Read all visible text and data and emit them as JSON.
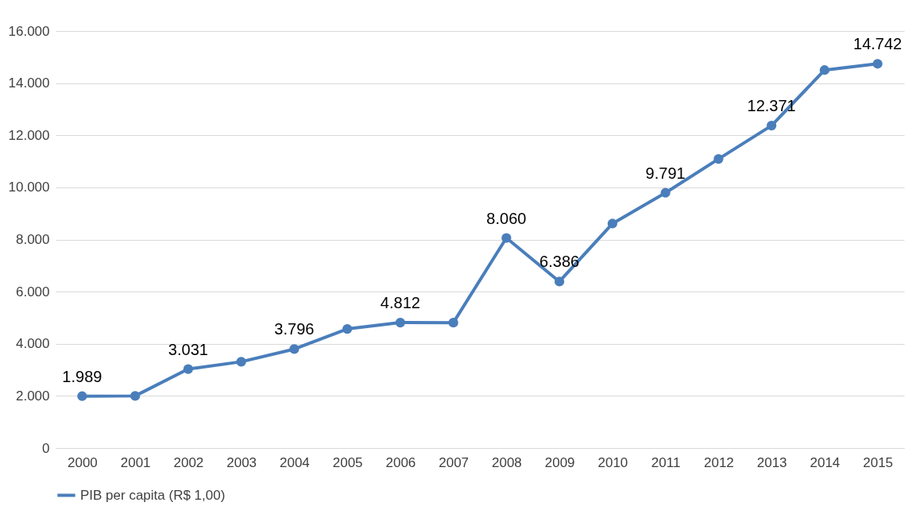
{
  "chart_data": {
    "type": "line",
    "categories": [
      "2000",
      "2001",
      "2002",
      "2003",
      "2004",
      "2005",
      "2006",
      "2007",
      "2008",
      "2009",
      "2010",
      "2011",
      "2012",
      "2013",
      "2014",
      "2015"
    ],
    "series": [
      {
        "name": "PIB per capita (R$ 1,00)",
        "color": "#4a7ebb",
        "values": [
          1989,
          2000,
          3031,
          3310,
          3796,
          4570,
          4812,
          4810,
          8060,
          6386,
          8610,
          9791,
          11090,
          12371,
          14500,
          14742
        ],
        "value_labels": [
          "1.989",
          null,
          "3.031",
          null,
          "3.796",
          null,
          "4.812",
          null,
          "8.060",
          "6.386",
          null,
          "9.791",
          null,
          "12.371",
          null,
          "14.742"
        ]
      }
    ],
    "ylim": [
      0,
      16000
    ],
    "yticks": [
      0,
      {
        "value": 2000,
        "label": "2.000"
      },
      {
        "value": 4000,
        "label": "4.000"
      },
      {
        "value": 6000,
        "label": "6.000"
      },
      {
        "value": 8000,
        "label": "8.000"
      },
      {
        "value": 10000,
        "label": "10.000"
      },
      {
        "value": 12000,
        "label": "12.000"
      },
      {
        "value": 14000,
        "label": "14.000"
      },
      {
        "value": 16000,
        "label": "16.000"
      }
    ],
    "grid": "y",
    "legend": "bottom",
    "marker": "circle",
    "line_style": "solid"
  }
}
